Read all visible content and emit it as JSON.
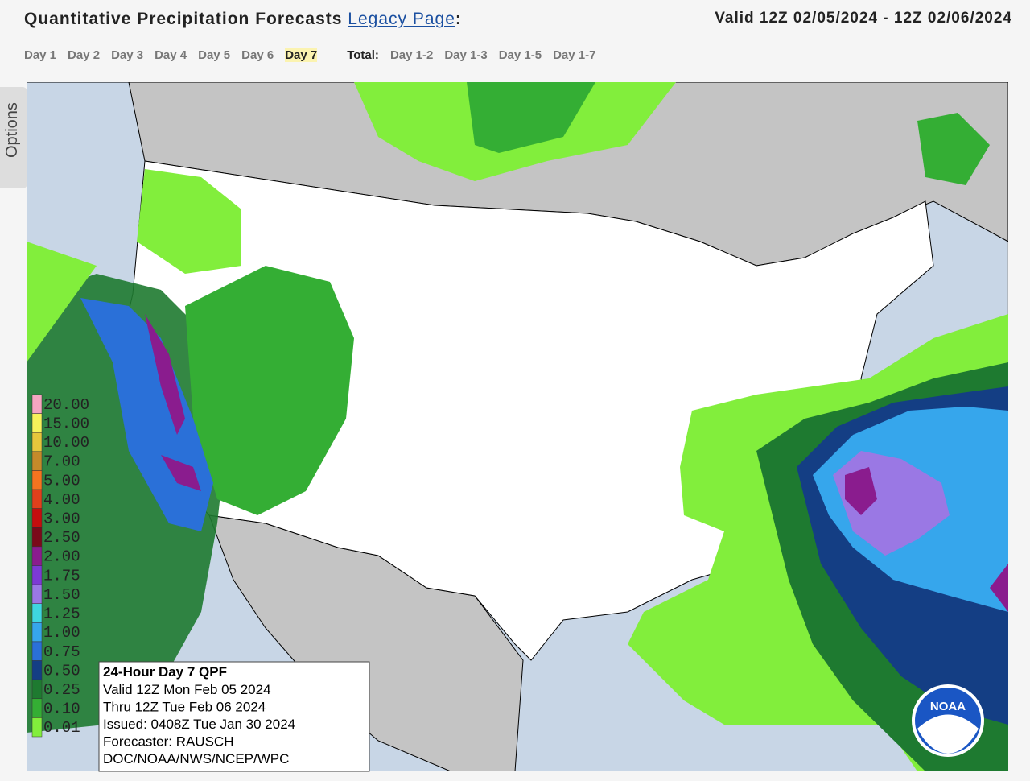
{
  "header": {
    "title": "Quantitative Precipitation Forecasts",
    "link": "Legacy Page",
    "colon": ":",
    "valid": "Valid 12Z 02/05/2024 - 12Z 02/06/2024"
  },
  "nav": {
    "days": [
      "Day 1",
      "Day 2",
      "Day 3",
      "Day 4",
      "Day 5",
      "Day 6",
      "Day 7"
    ],
    "total_label": "Total:",
    "totals": [
      "Day 1-2",
      "Day 1-3",
      "Day 1-5",
      "Day 1-7"
    ]
  },
  "options_tab": "Options",
  "legend": {
    "labels": [
      "20.00",
      "15.00",
      "10.00",
      "7.00",
      "5.00",
      "4.00",
      "3.00",
      "2.50",
      "2.00",
      "1.75",
      "1.50",
      "1.25",
      "1.00",
      "0.75",
      "0.50",
      "0.25",
      "0.10",
      "0.01"
    ],
    "colors": [
      "#f4a6c0",
      "#f6f25a",
      "#e6c63c",
      "#c48a2a",
      "#f47420",
      "#e0401c",
      "#c40e0e",
      "#7a0a1a",
      "#8a1c8e",
      "#7c3ad4",
      "#9a78e4",
      "#3ed6e0",
      "#36a6ec",
      "#2a70d8",
      "#143e84",
      "#1e7a30",
      "#34ae34",
      "#82ee3c"
    ]
  },
  "info_box": {
    "title": "24-Hour Day 7 QPF",
    "lines": [
      "Valid 12Z Mon Feb 05 2024",
      "Thru 12Z Tue Feb 06 2024",
      "Issued: 0408Z Tue Jan 30 2024",
      "Forecaster: RAUSCH",
      "DOC/NOAA/NWS/NCEP/WPC"
    ]
  },
  "logo": "NOAA"
}
